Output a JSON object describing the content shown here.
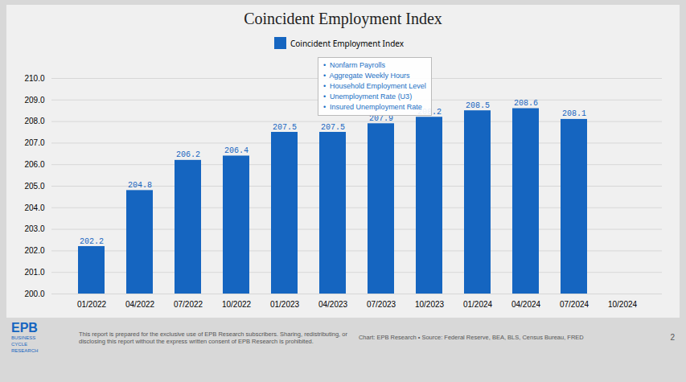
{
  "chart_data": {
    "type": "bar",
    "title": "Coincident Employment Index",
    "categories": [
      "01/2022",
      "04/2022",
      "07/2022",
      "10/2022",
      "01/2023",
      "04/2023",
      "07/2023",
      "10/2023",
      "01/2024",
      "04/2024",
      "07/2024",
      "10/2024"
    ],
    "series": [
      {
        "name": "Coincident Employment Index",
        "color": "#1565C0",
        "values": [
          202.2,
          204.8,
          206.2,
          206.4,
          207.5,
          207.5,
          207.9,
          208.2,
          208.5,
          208.6,
          208.1,
          null
        ]
      }
    ],
    "ylim": [
      200.0,
      210.0
    ],
    "yticks": [
      {
        "value": 200,
        "label": "200.0"
      },
      {
        "value": 201,
        "label": "201.0"
      },
      {
        "value": 202,
        "label": "202.0"
      },
      {
        "value": 203,
        "label": "203.0"
      },
      {
        "value": 204,
        "label": "204.0"
      },
      {
        "value": 205,
        "label": "205.0"
      },
      {
        "value": 206,
        "label": "206.0"
      },
      {
        "value": 207,
        "label": "207.0"
      },
      {
        "value": 208,
        "label": "208.0"
      },
      {
        "value": 209,
        "label": "209.0"
      },
      {
        "value": 210,
        "label": "210.0"
      }
    ],
    "grid": true,
    "legend": "top",
    "data_labels": true,
    "annotations": [
      "•  Nonfarm Payrolls\n•  Aggregate Weekly Hours\n•  Household Employment Level\n•  Unemployment Rate (U3)\n•  Insured Unemployment Rate",
      "EPB",
      "BUSINESS\nCYCLE\nRESEARCH",
      "This report is prepared for the exclusive use of EPB Research subscribers. Sharing, redistributing, or\ndisclosing this report without the express written consent of EPB Research is prohibited.",
      "Chart: EPB Research  •  Source: Federal Reserve, BEA, BLS, Census Bureau, FRED",
      "2"
    ]
  }
}
